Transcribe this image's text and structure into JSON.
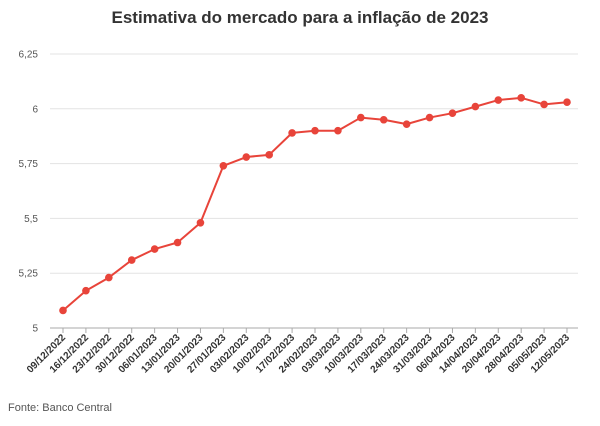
{
  "chart_data": {
    "type": "line",
    "title": "Estimativa do mercado para a inflação de 2023",
    "xlabel": "",
    "ylabel": "",
    "x": [
      "09/12/2022",
      "16/12/2022",
      "23/12/2022",
      "30/12/2022",
      "06/01/2023",
      "13/01/2023",
      "20/01/2023",
      "27/01/2023",
      "03/02/2023",
      "10/02/2023",
      "17/02/2023",
      "24/02/2023",
      "03/03/2023",
      "10/03/2023",
      "17/03/2023",
      "24/03/2023",
      "31/03/2023",
      "06/04/2023",
      "14/04/2023",
      "20/04/2023",
      "28/04/2023",
      "05/05/2023",
      "12/05/2023"
    ],
    "series": [
      {
        "values": [
          5.08,
          5.17,
          5.23,
          5.31,
          5.36,
          5.39,
          5.48,
          5.74,
          5.78,
          5.79,
          5.89,
          5.9,
          5.9,
          5.96,
          5.95,
          5.93,
          5.96,
          5.98,
          6.01,
          6.04,
          6.05,
          6.02,
          6.03
        ]
      }
    ],
    "yticks": [
      5,
      5.25,
      5.5,
      5.75,
      6,
      6.25
    ],
    "ytick_labels": [
      "5",
      "5,25",
      "5,5",
      "5,75",
      "6",
      "6,25"
    ],
    "ylim": [
      5,
      6.25
    ],
    "grid": "horizontal",
    "legend": "none",
    "line_color": "#e8443a",
    "grid_color": "#e3e3e3"
  },
  "source": "Fonte: Banco Central"
}
